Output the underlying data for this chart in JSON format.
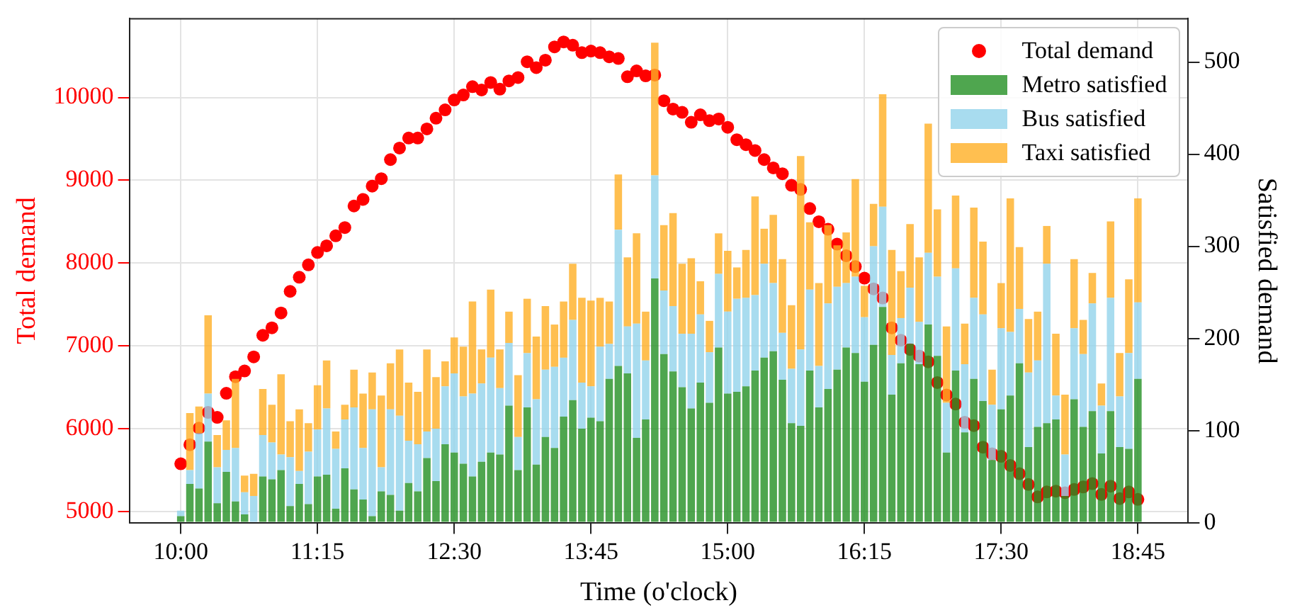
{
  "chart_data": {
    "type": "bar",
    "xlabel": "Time (o'clock)",
    "ylabel": "Total demand",
    "y2label": "Satisfied demand",
    "stacked": true,
    "grid": true,
    "legend": "top right",
    "x": [
      10,
      10.0833,
      10.1667,
      10.25,
      10.3333,
      10.4167,
      10.5,
      10.5833,
      10.6667,
      10.75,
      10.8333,
      10.9167,
      11,
      11.0833,
      11.1667,
      11.25,
      11.3333,
      11.4167,
      11.5,
      11.5833,
      11.6667,
      11.75,
      11.8333,
      11.9167,
      12,
      12.0833,
      12.1667,
      12.25,
      12.3333,
      12.4167,
      12.5,
      12.5833,
      12.6667,
      12.75,
      12.8333,
      12.9167,
      13,
      13.0833,
      13.1667,
      13.25,
      13.3333,
      13.4167,
      13.5,
      13.5833,
      13.6667,
      13.75,
      13.8333,
      13.9167,
      14,
      14.0833,
      14.1667,
      14.25,
      14.3333,
      14.4167,
      14.5,
      14.5833,
      14.6667,
      14.75,
      14.8333,
      14.9167,
      15,
      15.0833,
      15.1667,
      15.25,
      15.3333,
      15.4167,
      15.5,
      15.5833,
      15.6667,
      15.75,
      15.8333,
      15.9167,
      16,
      16.0833,
      16.1667,
      16.25,
      16.3333,
      16.4167,
      16.5,
      16.5833,
      16.6667,
      16.75,
      16.8333,
      16.9167,
      17,
      17.0833,
      17.1667,
      17.25,
      17.3333,
      17.4167,
      17.5,
      17.5833,
      17.6667,
      17.75,
      17.8333,
      17.9167,
      18,
      18.0833,
      18.1667,
      18.25,
      18.3333,
      18.4167,
      18.5,
      18.5833,
      18.6667,
      18.75
    ],
    "xlim": [
      9.53,
      19.21
    ],
    "xticks": [
      {
        "value": 10,
        "label": "10:00"
      },
      {
        "value": 11.25,
        "label": "11:15"
      },
      {
        "value": 12.5,
        "label": "12:30"
      },
      {
        "value": 13.75,
        "label": "13:45"
      },
      {
        "value": 15,
        "label": "15:00"
      },
      {
        "value": 16.25,
        "label": "16:15"
      },
      {
        "value": 17.5,
        "label": "17:30"
      },
      {
        "value": 18.75,
        "label": "18:45"
      }
    ],
    "ylim": [
      4870,
      10950
    ],
    "yticks": [
      5000,
      6000,
      7000,
      8000,
      9000,
      10000
    ],
    "y2lim": [
      0,
      547
    ],
    "y2ticks": [
      0,
      100,
      200,
      300,
      400,
      500
    ],
    "marker": "circle",
    "series": [
      {
        "name": "Total demand",
        "type": "scatter",
        "color": "#ff0000",
        "values": [
          5580,
          5810,
          6010,
          6200,
          6140,
          6430,
          6630,
          6700,
          6870,
          7130,
          7220,
          7400,
          7660,
          7830,
          7980,
          8130,
          8210,
          8330,
          8430,
          8690,
          8770,
          8930,
          9020,
          9250,
          9390,
          9510,
          9510,
          9620,
          9750,
          9850,
          9970,
          10030,
          10130,
          10090,
          10180,
          10100,
          10200,
          10240,
          10430,
          10360,
          10450,
          10610,
          10670,
          10630,
          10540,
          10560,
          10540,
          10490,
          10470,
          10250,
          10320,
          10260,
          10270,
          9960,
          9860,
          9820,
          9700,
          9790,
          9720,
          9740,
          9640,
          9490,
          9430,
          9360,
          9250,
          9150,
          9080,
          8940,
          8890,
          8660,
          8500,
          8410,
          8230,
          8090,
          7960,
          7820,
          7690,
          7580,
          7220,
          7070,
          6960,
          6880,
          6810,
          6560,
          6410,
          6300,
          6080,
          6040,
          5780,
          5700,
          5670,
          5560,
          5460,
          5330,
          5180,
          5240,
          5250,
          5230,
          5270,
          5300,
          5340,
          5210,
          5310,
          5160,
          5240,
          5150
        ]
      },
      {
        "name": "Metro satisfied",
        "axis": "y2",
        "color": "#4fa64f",
        "values": [
          7,
          42,
          37,
          88,
          21,
          55,
          23,
          9,
          0,
          50,
          47,
          57,
          18,
          42,
          20,
          50,
          52,
          15,
          59,
          36,
          25,
          7,
          34,
          30,
          13,
          43,
          34,
          70,
          45,
          85,
          76,
          64,
          50,
          66,
          76,
          74,
          127,
          57,
          125,
          63,
          93,
          81,
          115,
          133,
          102,
          114,
          110,
          156,
          170,
          162,
          92,
          112,
          265,
          183,
          164,
          147,
          124,
          152,
          130,
          190,
          140,
          142,
          148,
          165,
          179,
          186,
          155,
          108,
          105,
          165,
          125,
          145,
          166,
          190,
          184,
          153,
          193,
          234,
          139,
          173,
          194,
          172,
          215,
          181,
          76,
          165,
          98,
          156,
          132,
          68,
          123,
          138,
          173,
          82,
          104,
          108,
          112,
          29,
          134,
          104,
          121,
          75,
          121,
          82,
          80,
          156
        ]
      },
      {
        "name": "Bus satisfied",
        "axis": "y2",
        "color": "#a8dcef",
        "values": [
          6,
          15,
          60,
          52,
          39,
          24,
          58,
          24,
          29,
          45,
          40,
          17,
          53,
          14,
          57,
          51,
          72,
          65,
          53,
          89,
          56,
          116,
          26,
          93,
          103,
          46,
          51,
          29,
          57,
          63,
          86,
          73,
          90,
          85,
          103,
          72,
          68,
          36,
          59,
          71,
          73,
          88,
          64,
          87,
          50,
          34,
          81,
          38,
          148,
          51,
          124,
          64,
          112,
          69,
          71,
          58,
          81,
          74,
          55,
          80,
          89,
          101,
          96,
          82,
          102,
          74,
          51,
          59,
          83,
          88,
          45,
          93,
          90,
          70,
          83,
          70,
          107,
          109,
          43,
          49,
          61,
          46,
          78,
          86,
          54,
          111,
          74,
          88,
          94,
          60,
          88,
          69,
          59,
          81,
          72,
          173,
          26,
          45,
          77,
          79,
          117,
          52,
          123,
          55,
          104,
          83
        ]
      },
      {
        "name": "Taxi satisfied",
        "axis": "y2",
        "color": "#ffbf50",
        "values": [
          0,
          62,
          29,
          85,
          35,
          32,
          75,
          18,
          24,
          50,
          41,
          87,
          39,
          67,
          31,
          48,
          52,
          19,
          16,
          41,
          59,
          40,
          78,
          50,
          72,
          63,
          57,
          89,
          56,
          27,
          39,
          54,
          100,
          37,
          74,
          42,
          34,
          67,
          59,
          68,
          69,
          46,
          61,
          61,
          92,
          93,
          53,
          46,
          60,
          75,
          98,
          53,
          144,
          71,
          101,
          76,
          82,
          36,
          34,
          44,
          66,
          34,
          52,
          107,
          38,
          74,
          80,
          69,
          210,
          73,
          90,
          85,
          45,
          55,
          106,
          34,
          46,
          122,
          114,
          51,
          69,
          70,
          140,
          73,
          83,
          79,
          44,
          98,
          79,
          38,
          49,
          145,
          67,
          58,
          53,
          41,
          67,
          65,
          75,
          37,
          33,
          24,
          83,
          47,
          80,
          113
        ]
      }
    ]
  }
}
